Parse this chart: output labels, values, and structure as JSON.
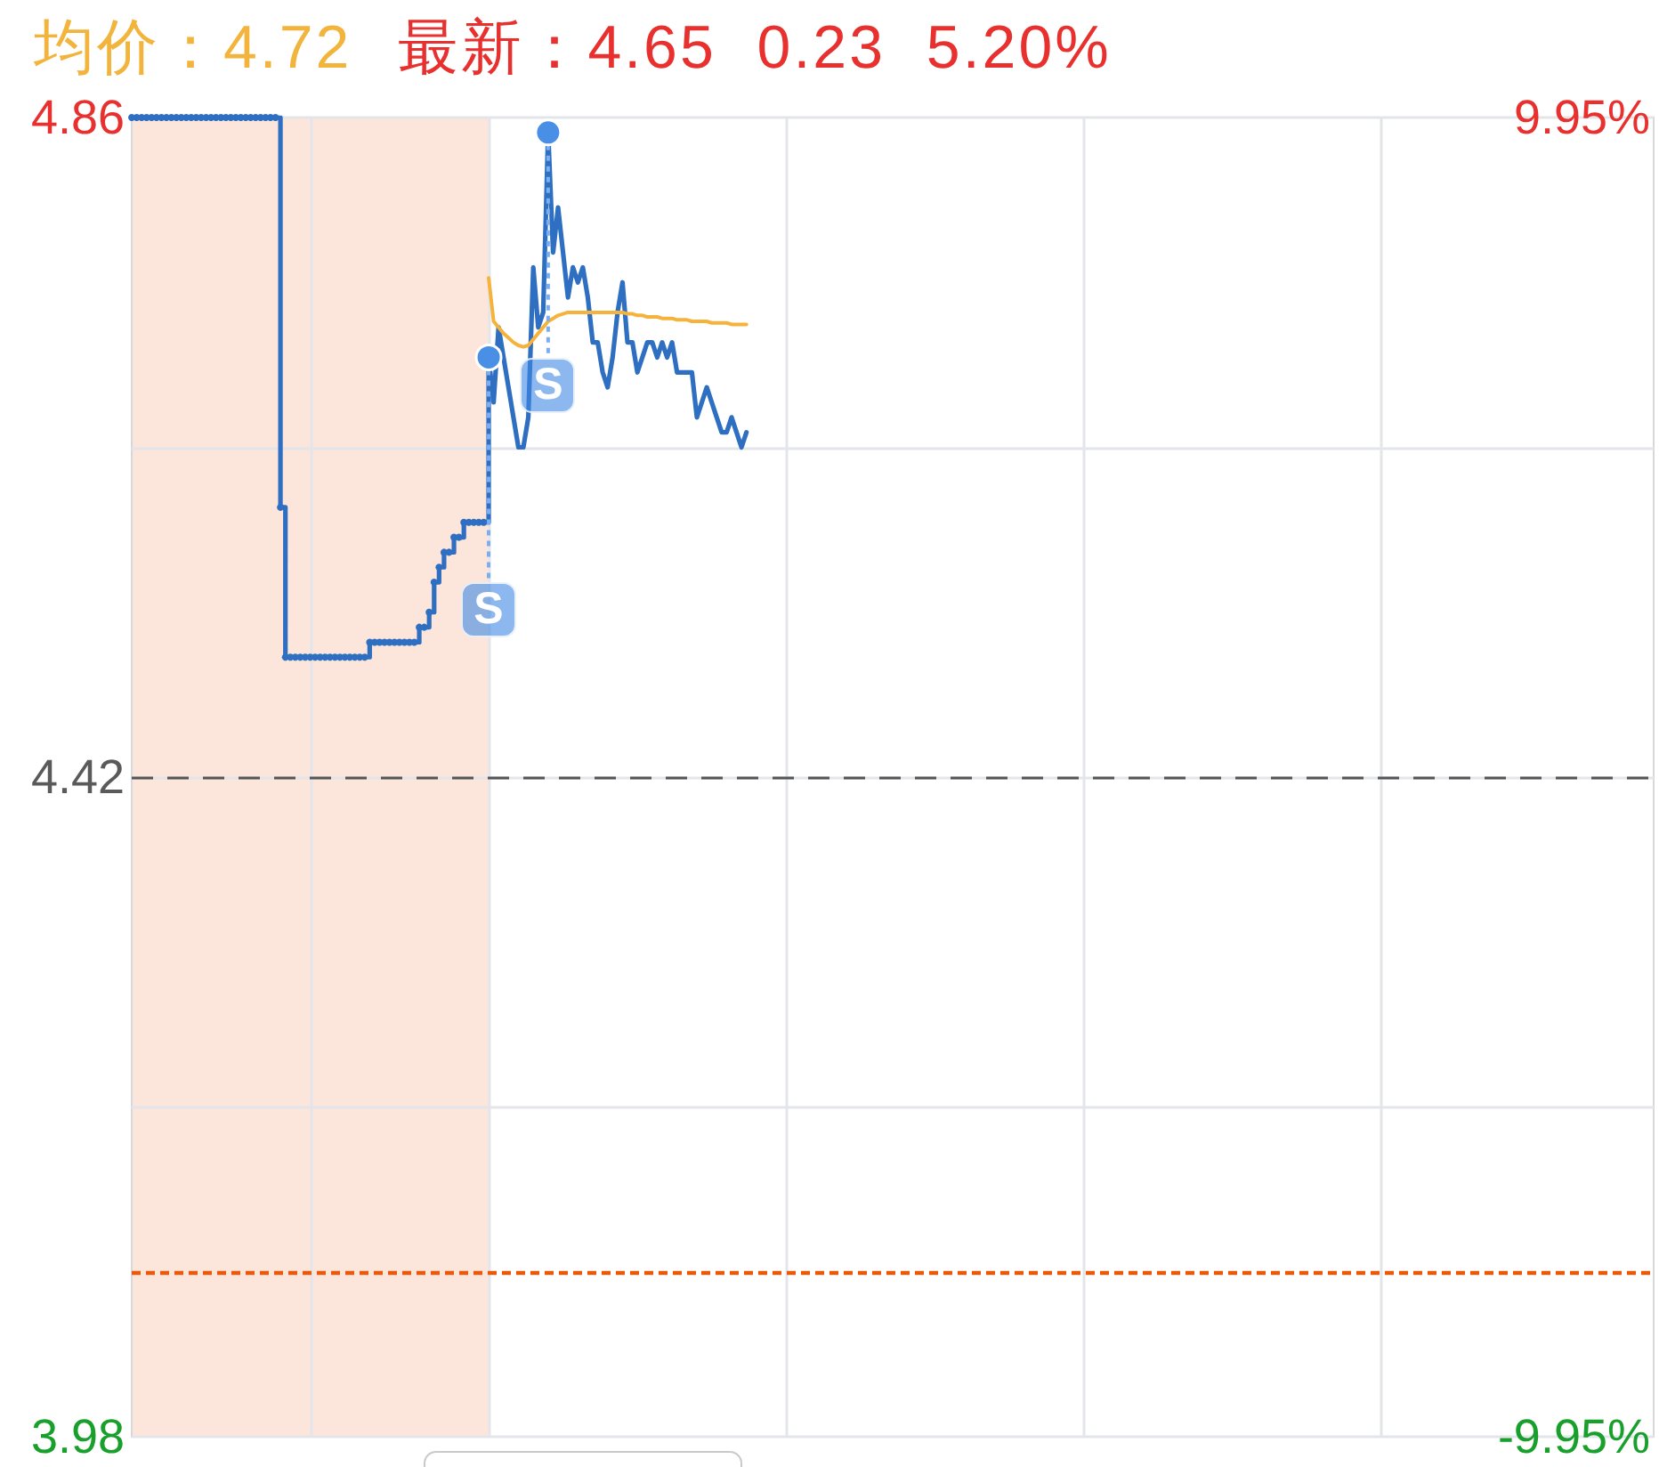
{
  "chart_data": {
    "type": "line",
    "annotations": [
      "均价：4.72",
      "最新：4.65 0.23 5.20%",
      {
        "text": "S",
        "y": 4.7
      },
      {
        "text": "S",
        "y": 4.85
      }
    ],
    "categories": [
      null,
      null,
      null,
      null,
      null,
      null,
      null,
      null,
      null,
      null,
      null,
      null,
      null,
      null,
      null,
      null,
      null,
      null,
      null,
      null,
      null,
      null,
      null,
      null,
      null,
      null,
      null,
      null,
      null,
      null,
      null,
      null,
      null,
      null,
      null,
      null,
      null,
      null,
      null,
      null,
      null,
      null,
      null,
      null,
      null,
      null,
      null,
      null,
      null,
      null,
      null,
      null,
      null,
      null,
      null,
      null,
      null,
      null,
      null,
      null,
      null,
      null,
      null,
      null,
      null,
      null,
      null,
      null,
      null,
      null,
      null,
      null,
      null,
      null,
      null,
      null,
      null,
      null,
      null,
      null,
      null,
      null,
      null,
      null,
      null,
      null,
      null,
      null,
      null,
      null,
      null,
      null,
      null,
      null,
      null,
      null,
      null,
      null,
      null,
      null,
      null,
      null,
      null,
      null,
      null,
      null,
      null,
      null,
      null,
      null,
      null,
      null,
      null,
      null,
      null,
      null,
      null,
      null,
      null,
      null,
      null,
      null,
      null,
      null,
      null,
      null,
      null,
      null,
      null,
      null,
      null,
      null,
      null,
      null,
      null,
      null,
      null,
      null,
      null,
      null,
      null,
      null,
      null,
      null,
      null,
      null,
      null,
      null,
      null,
      null,
      null,
      null,
      null,
      null,
      null,
      null,
      null,
      null,
      null,
      null,
      null,
      null,
      null,
      null,
      null,
      null,
      null,
      null,
      null,
      null,
      null,
      null,
      null,
      null,
      null,
      null,
      null,
      null,
      null,
      null,
      null,
      null,
      null,
      null,
      null,
      null,
      null,
      null,
      null,
      null,
      null,
      null,
      null,
      null,
      null,
      null,
      null,
      null,
      null,
      null,
      null,
      null,
      null,
      null,
      null,
      null,
      null,
      null,
      null,
      null,
      null,
      null,
      null,
      null,
      null,
      null,
      null,
      null,
      null,
      null,
      null,
      null,
      null,
      null,
      null,
      null,
      null,
      null,
      null,
      null,
      null,
      null,
      null,
      null,
      null,
      null,
      null,
      null,
      null,
      null,
      null,
      null,
      null,
      null,
      null,
      null,
      null,
      null,
      null,
      null,
      null,
      null,
      null,
      null,
      null,
      null,
      null,
      null,
      null,
      null,
      null,
      null,
      null,
      null,
      null,
      null,
      null,
      null,
      null,
      null,
      null,
      null,
      null,
      null,
      null,
      null,
      null,
      null,
      null,
      null,
      null,
      null,
      null,
      null,
      null,
      null,
      null,
      null,
      null,
      null,
      null,
      null,
      null,
      null,
      null,
      null,
      null,
      null,
      null,
      null,
      null,
      null,
      null,
      null,
      null,
      null,
      null,
      null
    ],
    "series": [
      {
        "type": "step",
        "color": "#2f6fc2",
        "marker": "circle",
        "values": [
          4.86,
          4.86,
          4.86,
          4.86,
          4.86,
          4.86,
          4.86,
          4.86,
          4.86,
          4.86,
          4.86,
          4.86,
          4.86,
          4.86,
          4.86,
          4.86,
          4.86,
          4.86,
          4.86,
          4.86,
          4.86,
          4.86,
          4.86,
          4.86,
          4.86,
          4.86,
          4.86,
          4.86,
          4.86,
          4.86,
          4.6,
          4.5,
          4.5,
          4.5,
          4.5,
          4.5,
          4.5,
          4.5,
          4.5,
          4.5,
          4.5,
          4.5,
          4.5,
          4.5,
          4.5,
          4.5,
          4.5,
          4.5,
          4.51,
          4.51,
          4.51,
          4.51,
          4.51,
          4.51,
          4.51,
          4.51,
          4.51,
          4.51,
          4.52,
          4.52,
          4.53,
          4.55,
          4.56,
          4.57,
          4.57,
          4.58,
          4.58,
          4.59,
          4.59,
          4.59,
          4.59,
          4.59,
          4.7,
          null,
          null,
          null,
          null,
          null,
          null,
          null,
          null,
          null,
          null,
          null,
          null,
          null,
          null,
          null,
          null,
          null,
          null,
          null,
          null,
          null,
          null,
          null,
          null,
          null,
          null,
          null,
          null,
          null,
          null,
          null,
          null,
          null,
          null,
          null,
          null,
          null,
          null,
          null,
          null,
          null,
          null,
          null,
          null,
          null,
          null,
          null,
          null,
          null,
          null,
          null,
          null,
          null,
          null,
          null,
          null,
          null,
          null,
          null,
          null,
          null,
          null,
          null,
          null,
          null,
          null,
          null,
          null,
          null,
          null,
          null,
          null,
          null,
          null,
          null,
          null,
          null,
          null,
          null,
          null,
          null,
          null,
          null,
          null,
          null,
          null,
          null,
          null,
          null,
          null,
          null,
          null,
          null,
          null,
          null,
          null,
          null,
          null,
          null,
          null,
          null,
          null,
          null,
          null,
          null,
          null,
          null,
          null,
          null,
          null,
          null,
          null,
          null,
          null,
          null,
          null,
          null,
          null,
          null,
          null,
          null,
          null,
          null,
          null,
          null,
          null,
          null,
          null,
          null,
          null,
          null,
          null,
          null,
          null,
          null,
          null,
          null,
          null,
          null,
          null,
          null,
          null,
          null,
          null,
          null,
          null,
          null,
          null,
          null,
          null,
          null,
          null,
          null,
          null,
          null,
          null,
          null,
          null,
          null,
          null,
          null,
          null,
          null,
          null,
          null,
          null,
          null,
          null,
          null,
          null,
          null,
          null,
          null,
          null,
          null,
          null,
          null,
          null,
          null,
          null,
          null,
          null,
          null,
          null,
          null,
          null,
          null,
          null,
          null,
          null,
          null,
          null,
          null,
          null,
          null,
          null,
          null,
          null,
          null,
          null,
          null,
          null,
          null,
          null,
          null,
          null,
          null,
          null,
          null,
          null,
          null,
          null,
          null,
          null,
          null,
          null,
          null,
          null,
          null,
          null,
          null,
          null,
          null,
          null,
          null,
          null,
          null,
          null,
          null,
          null,
          null,
          null,
          null,
          null,
          null
        ]
      },
      {
        "color": "#2f6fc2",
        "values": [
          null,
          null,
          null,
          null,
          null,
          null,
          null,
          null,
          null,
          null,
          null,
          null,
          null,
          null,
          null,
          null,
          null,
          null,
          null,
          null,
          null,
          null,
          null,
          null,
          null,
          null,
          null,
          null,
          null,
          null,
          null,
          null,
          null,
          null,
          null,
          null,
          null,
          null,
          null,
          null,
          null,
          null,
          null,
          null,
          null,
          null,
          null,
          null,
          null,
          null,
          null,
          null,
          null,
          null,
          null,
          null,
          null,
          null,
          null,
          null,
          null,
          null,
          null,
          null,
          null,
          null,
          null,
          null,
          null,
          null,
          null,
          null,
          4.7,
          4.67,
          4.72,
          4.7,
          4.68,
          4.66,
          4.64,
          4.64,
          4.66,
          4.76,
          4.72,
          4.73,
          4.85,
          4.77,
          4.8,
          4.77,
          4.74,
          4.76,
          4.75,
          4.76,
          4.74,
          4.71,
          4.71,
          4.69,
          4.68,
          4.7,
          4.73,
          4.75,
          4.71,
          4.71,
          4.69,
          4.7,
          4.71,
          4.71,
          4.7,
          4.71,
          4.7,
          4.71,
          4.69,
          4.69,
          4.69,
          4.69,
          4.66,
          4.67,
          4.68,
          4.67,
          4.66,
          4.65,
          4.65,
          4.66,
          4.65,
          4.64,
          4.65,
          null,
          null,
          null,
          null,
          null,
          null,
          null,
          null,
          null,
          null,
          null,
          null,
          null,
          null,
          null,
          null,
          null,
          null,
          null,
          null,
          null,
          null,
          null,
          null,
          null,
          null,
          null,
          null,
          null,
          null,
          null,
          null,
          null,
          null,
          null,
          null,
          null,
          null,
          null,
          null,
          null,
          null,
          null,
          null,
          null,
          null,
          null,
          null,
          null,
          null,
          null,
          null,
          null,
          null,
          null,
          null,
          null,
          null,
          null,
          null,
          null,
          null,
          null,
          null,
          null,
          null,
          null,
          null,
          null,
          null,
          null,
          null,
          null,
          null,
          null,
          null,
          null,
          null,
          null,
          null,
          null,
          null,
          null,
          null,
          null,
          null,
          null,
          null,
          null,
          null,
          null,
          null,
          null,
          null,
          null,
          null,
          null,
          null,
          null,
          null,
          null,
          null,
          null,
          null,
          null,
          null,
          null,
          null,
          null,
          null,
          null,
          null,
          null,
          null,
          null,
          null,
          null,
          null,
          null,
          null,
          null,
          null,
          null,
          null,
          null,
          null,
          null,
          null,
          null,
          null,
          null,
          null,
          null,
          null,
          null,
          null,
          null,
          null,
          null,
          null,
          null,
          null,
          null,
          null,
          null,
          null,
          null,
          null,
          null,
          null,
          null,
          null,
          null,
          null,
          null,
          null,
          null,
          null,
          null,
          null,
          null,
          null,
          null,
          null,
          null,
          null,
          null,
          null,
          null,
          null,
          null,
          null,
          null,
          null,
          null,
          null,
          null,
          null,
          null,
          null,
          null,
          null,
          null
        ]
      },
      {
        "color": "#f5b33b",
        "values": [
          null,
          null,
          null,
          null,
          null,
          null,
          null,
          null,
          null,
          null,
          null,
          null,
          null,
          null,
          null,
          null,
          null,
          null,
          null,
          null,
          null,
          null,
          null,
          null,
          null,
          null,
          null,
          null,
          null,
          null,
          null,
          null,
          null,
          null,
          null,
          null,
          null,
          null,
          null,
          null,
          null,
          null,
          null,
          null,
          null,
          null,
          null,
          null,
          null,
          null,
          null,
          null,
          null,
          null,
          null,
          null,
          null,
          null,
          null,
          null,
          null,
          null,
          null,
          null,
          null,
          null,
          null,
          null,
          null,
          null,
          null,
          null,
          4.753,
          4.724,
          4.72,
          4.716,
          4.713,
          4.71,
          4.708,
          4.707,
          4.708,
          4.712,
          4.716,
          4.72,
          4.724,
          4.726,
          4.728,
          4.729,
          4.73,
          4.73,
          4.73,
          4.73,
          4.73,
          4.73,
          4.73,
          4.73,
          4.73,
          4.73,
          4.73,
          4.73,
          4.729,
          4.729,
          4.728,
          4.728,
          4.727,
          4.727,
          4.727,
          4.726,
          4.726,
          4.726,
          4.725,
          4.725,
          4.725,
          4.724,
          4.724,
          4.724,
          4.724,
          4.723,
          4.723,
          4.723,
          4.723,
          4.722,
          4.722,
          4.722,
          4.722,
          null,
          null,
          null,
          null,
          null,
          null,
          null,
          null,
          null,
          null,
          null,
          null,
          null,
          null,
          null,
          null,
          null,
          null,
          null,
          null,
          null,
          null,
          null,
          null,
          null,
          null,
          null,
          null,
          null,
          null,
          null,
          null,
          null,
          null,
          null,
          null,
          null,
          null,
          null,
          null,
          null,
          null,
          null,
          null,
          null,
          null,
          null,
          null,
          null,
          null,
          null,
          null,
          null,
          null,
          null,
          null,
          null,
          null,
          null,
          null,
          null,
          null,
          null,
          null,
          null,
          null,
          null,
          null,
          null,
          null,
          null,
          null,
          null,
          null,
          null,
          null,
          null,
          null,
          null,
          null,
          null,
          null,
          null,
          null,
          null,
          null,
          null,
          null,
          null,
          null,
          null,
          null,
          null,
          null,
          null,
          null,
          null,
          null,
          null,
          null,
          null,
          null,
          null,
          null,
          null,
          null,
          null,
          null,
          null,
          null,
          null,
          null,
          null,
          null,
          null,
          null,
          null,
          null,
          null,
          null,
          null,
          null,
          null,
          null,
          null,
          null,
          null,
          null,
          null,
          null,
          null,
          null,
          null,
          null,
          null,
          null,
          null,
          null,
          null,
          null,
          null,
          null,
          null,
          null,
          null,
          null,
          null,
          null,
          null,
          null,
          null,
          null,
          null,
          null,
          null,
          null,
          null,
          null,
          null,
          null,
          null,
          null,
          null,
          null,
          null,
          null,
          null,
          null,
          null,
          null,
          null,
          null,
          null,
          null,
          null,
          null,
          null,
          null,
          null,
          null,
          null,
          null,
          null
        ]
      }
    ],
    "ylim": [
      3.98,
      4.86
    ],
    "yticks": [
      3.98,
      {
        "value": 4.2,
        "label": null
      },
      4.42,
      {
        "value": 4.64,
        "label": null
      },
      4.86
    ],
    "y2lim": [
      -9.95,
      9.95
    ],
    "y2ticks": [
      {
        "value": -9.95,
        "label": "-9.95%"
      },
      {
        "value": 9.95,
        "label": "9.95%"
      }
    ],
    "ref_lines": [
      {
        "axis": "y",
        "value": 4.42,
        "color": "#555555",
        "line_style": "dashed"
      },
      {
        "axis": "y",
        "value": 4.09,
        "color": "#e8590c",
        "line_style": "dotted"
      }
    ],
    "grid": true,
    "marker": "none"
  }
}
